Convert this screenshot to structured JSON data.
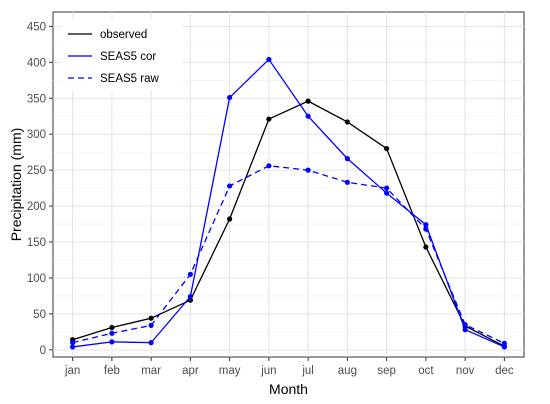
{
  "chart_data": {
    "type": "line",
    "xlabel": "Month",
    "ylabel": "Precipitation (mm)",
    "categories": [
      "jan",
      "feb",
      "mar",
      "apr",
      "may",
      "jun",
      "jul",
      "aug",
      "sep",
      "oct",
      "nov",
      "dec"
    ],
    "ylim": [
      -10,
      470
    ],
    "yticks": [
      0,
      50,
      100,
      150,
      200,
      250,
      300,
      350,
      400,
      450
    ],
    "grid": true,
    "legend_position": "top-left",
    "series": [
      {
        "name": "observed",
        "color": "#000000",
        "line_style": "solid",
        "values": [
          14,
          31,
          44,
          69,
          182,
          321,
          346,
          317,
          280,
          143,
          33,
          5
        ]
      },
      {
        "name": "SEAS5 cor",
        "color": "#0000ff",
        "line_style": "solid",
        "values": [
          4,
          11,
          10,
          74,
          351,
          404,
          325,
          266,
          218,
          174,
          28,
          4
        ]
      },
      {
        "name": "SEAS5 raw",
        "color": "#0000ff",
        "line_style": "dashed",
        "values": [
          10,
          23,
          34,
          105,
          228,
          256,
          250,
          233,
          225,
          168,
          35,
          9
        ]
      }
    ]
  }
}
